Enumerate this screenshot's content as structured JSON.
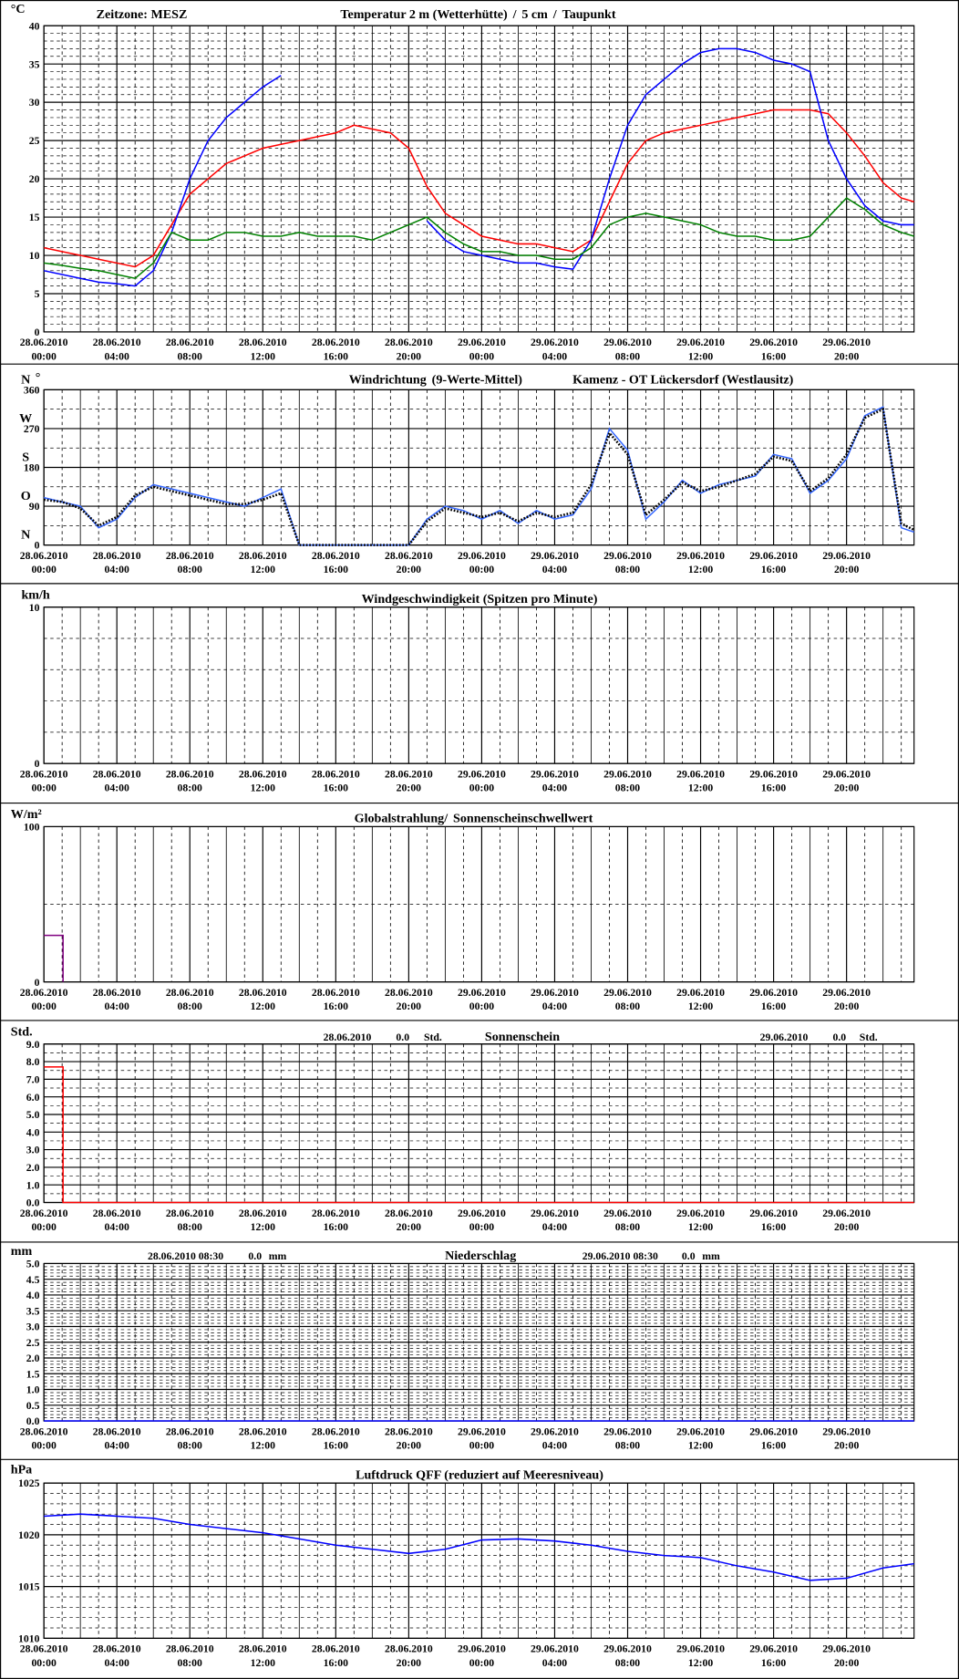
{
  "chart_data": [
    {
      "type": "line",
      "unit": "°C",
      "timezone": "Zeitzone: MESZ",
      "legend_separator": "/",
      "x": [
        0,
        1,
        2,
        3,
        4,
        5,
        6,
        7,
        8,
        9,
        10,
        11,
        12,
        13,
        14,
        15,
        16,
        17,
        18,
        19,
        20,
        21,
        22,
        23,
        24,
        25,
        26,
        27,
        28,
        29,
        30,
        31,
        32,
        33,
        34,
        35,
        36,
        37,
        38,
        39,
        40,
        41,
        42,
        43,
        44,
        45,
        46,
        47,
        47.7
      ],
      "series": [
        {
          "name": "Temperatur 2 m (Wetterhütte)",
          "color": "#ff0000",
          "values": [
            11,
            10.5,
            10,
            9.5,
            9,
            8.5,
            10,
            14,
            18,
            20,
            22,
            23,
            24,
            24.5,
            25,
            25.5,
            26,
            27,
            26.5,
            26,
            24,
            19,
            15.5,
            14,
            12.5,
            12,
            11.5,
            11.5,
            11,
            10.5,
            12,
            17,
            22,
            25,
            26,
            26.5,
            27,
            27.5,
            28,
            28.5,
            29,
            29,
            29,
            28.5,
            26,
            23,
            19.5,
            17.5,
            17
          ]
        },
        {
          "name": "5 cm",
          "color": "#0000ff",
          "values": [
            8,
            7.5,
            7,
            6.5,
            6.3,
            6,
            8,
            13,
            20,
            25,
            28,
            30,
            32,
            33.5,
            null,
            null,
            null,
            null,
            null,
            null,
            null,
            14.5,
            12,
            10.5,
            10,
            9.5,
            9,
            9,
            8.5,
            8.2,
            12,
            20,
            27,
            31,
            33,
            35,
            36.5,
            37,
            37,
            36.5,
            35.5,
            35,
            34,
            25,
            20,
            16.5,
            14.5,
            14,
            14
          ]
        },
        {
          "name": "Taupunkt",
          "color": "#008000",
          "values": [
            9,
            8.7,
            8.3,
            8,
            7.5,
            7,
            9,
            13,
            12,
            12,
            13,
            13,
            12.5,
            12.5,
            13,
            12.5,
            12.5,
            12.5,
            12,
            13,
            14,
            15,
            13,
            11.5,
            10.5,
            10.5,
            10,
            10,
            9.5,
            9.5,
            11,
            14,
            15,
            15.5,
            15,
            14.5,
            14,
            13,
            12.5,
            12.5,
            12,
            12,
            12.5,
            15,
            17.5,
            16,
            14,
            13,
            12.5
          ]
        }
      ],
      "xlim": [
        0,
        47.7
      ],
      "ylim": [
        0,
        40
      ],
      "yticks": [
        0,
        5,
        10,
        15,
        20,
        25,
        30,
        35,
        40
      ],
      "xticks": [
        {
          "value": 0,
          "label": "28.06.2010 00:00"
        },
        {
          "value": 4,
          "label": "28.06.2010 04:00"
        },
        {
          "value": 8,
          "label": "28.06.2010 08:00"
        },
        {
          "value": 12,
          "label": "28.06.2010 12:00"
        },
        {
          "value": 16,
          "label": "28.06.2010 16:00"
        },
        {
          "value": 20,
          "label": "28.06.2010 20:00"
        },
        {
          "value": 24,
          "label": "29.06.2010 00:00"
        },
        {
          "value": 28,
          "label": "29.06.2010 04:00"
        },
        {
          "value": 32,
          "label": "29.06.2010 08:00"
        },
        {
          "value": 36,
          "label": "29.06.2010 12:00"
        },
        {
          "value": 40,
          "label": "29.06.2010 16:00"
        },
        {
          "value": 44,
          "label": "29.06.2010 20:00"
        }
      ]
    },
    {
      "type": "line",
      "unit": "°",
      "station": "Kamenz - OT Lückersdorf (Westlausitz)",
      "compass_labels": [
        "N",
        "O",
        "S",
        "W",
        "N"
      ],
      "x": [
        0,
        1,
        2,
        3,
        4,
        5,
        6,
        7,
        8,
        9,
        10,
        11,
        12,
        13,
        14,
        15,
        16,
        17,
        18,
        19,
        20,
        21,
        22,
        23,
        24,
        25,
        26,
        27,
        28,
        29,
        30,
        31,
        32,
        33,
        34,
        35,
        36,
        37,
        38,
        39,
        40,
        41,
        42,
        43,
        44,
        45,
        46,
        47,
        47.7
      ],
      "series": [
        {
          "name": "Windrichtung",
          "color": "#3366ff",
          "values": [
            110,
            100,
            90,
            40,
            60,
            110,
            140,
            130,
            120,
            110,
            100,
            90,
            110,
            130,
            0,
            0,
            0,
            0,
            0,
            0,
            0,
            60,
            90,
            80,
            60,
            80,
            50,
            80,
            60,
            70,
            130,
            270,
            220,
            60,
            100,
            150,
            120,
            140,
            150,
            160,
            210,
            200,
            120,
            150,
            200,
            300,
            320,
            40,
            30
          ]
        },
        {
          "name": "(9-Werte-Mittel)",
          "color": "#000000",
          "values": [
            105,
            100,
            85,
            45,
            65,
            115,
            135,
            125,
            115,
            105,
            95,
            95,
            105,
            120,
            0,
            0,
            0,
            0,
            0,
            0,
            0,
            55,
            85,
            75,
            65,
            75,
            55,
            75,
            65,
            75,
            140,
            260,
            210,
            70,
            105,
            145,
            125,
            135,
            150,
            165,
            205,
            195,
            125,
            155,
            210,
            295,
            315,
            50,
            35
          ]
        }
      ],
      "xlim": [
        0,
        47.7
      ],
      "ylim": [
        0,
        360
      ],
      "yticks": [
        0,
        90,
        180,
        270,
        360
      ],
      "xticks": [
        {
          "value": 0,
          "label": "28.06.2010 00:00"
        },
        {
          "value": 4,
          "label": "28.06.2010 04:00"
        },
        {
          "value": 8,
          "label": "28.06.2010 08:00"
        },
        {
          "value": 12,
          "label": "28.06.2010 12:00"
        },
        {
          "value": 16,
          "label": "28.06.2010 16:00"
        },
        {
          "value": 20,
          "label": "28.06.2010 20:00"
        },
        {
          "value": 24,
          "label": "29.06.2010 00:00"
        },
        {
          "value": 28,
          "label": "29.06.2010 04:00"
        },
        {
          "value": 32,
          "label": "29.06.2010 08:00"
        },
        {
          "value": 36,
          "label": "29.06.2010 12:00"
        },
        {
          "value": 40,
          "label": "29.06.2010 16:00"
        },
        {
          "value": 44,
          "label": "29.06.2010 20:00"
        }
      ]
    },
    {
      "type": "line",
      "unit": "km/h",
      "title": "Windgeschwindigkeit (Spitzen pro Minute)",
      "xlim": [
        0,
        47.7
      ],
      "ylim": [
        0,
        10
      ],
      "yticks": [
        0,
        10
      ],
      "xticks": [
        {
          "value": 0,
          "label": "28.06.2010 00:00"
        },
        {
          "value": 4,
          "label": "28.06.2010 04:00"
        },
        {
          "value": 8,
          "label": "28.06.2010 08:00"
        },
        {
          "value": 12,
          "label": "28.06.2010 12:00"
        },
        {
          "value": 16,
          "label": "28.06.2010 16:00"
        },
        {
          "value": 20,
          "label": "28.06.2010 20:00"
        },
        {
          "value": 24,
          "label": "29.06.2010 00:00"
        },
        {
          "value": 28,
          "label": "29.06.2010 04:00"
        },
        {
          "value": 32,
          "label": "29.06.2010 08:00"
        },
        {
          "value": 36,
          "label": "29.06.2010 12:00"
        },
        {
          "value": 40,
          "label": "29.06.2010 16:00"
        },
        {
          "value": 44,
          "label": "29.06.2010 20:00"
        }
      ]
    },
    {
      "type": "line",
      "unit": "W/m²",
      "title": "Globalstrahlung/",
      "series": [
        {
          "name": "Sonnenscheinschwellwert",
          "color": "#800080",
          "x": [
            0,
            1.05,
            1.05
          ],
          "values": [
            30,
            30,
            0
          ]
        }
      ],
      "xlim": [
        0,
        47.7
      ],
      "ylim": [
        0,
        100
      ],
      "yticks": [
        0,
        100
      ],
      "xticks": [
        {
          "value": 0,
          "label": "28.06.2010 00:00"
        },
        {
          "value": 4,
          "label": "28.06.2010 04:00"
        },
        {
          "value": 8,
          "label": "28.06.2010 08:00"
        },
        {
          "value": 12,
          "label": "28.06.2010 12:00"
        },
        {
          "value": 16,
          "label": "28.06.2010 16:00"
        },
        {
          "value": 20,
          "label": "28.06.2010 20:00"
        },
        {
          "value": 24,
          "label": "29.06.2010 00:00"
        },
        {
          "value": 28,
          "label": "29.06.2010 04:00"
        },
        {
          "value": 32,
          "label": "29.06.2010 08:00"
        },
        {
          "value": 36,
          "label": "29.06.2010 12:00"
        },
        {
          "value": 40,
          "label": "29.06.2010 16:00"
        },
        {
          "value": 44,
          "label": "29.06.2010 20:00"
        }
      ]
    },
    {
      "type": "line",
      "unit": "Std.",
      "title": "Sonnenschein",
      "total_unit": "Std.",
      "daily_totals": [
        {
          "date": "28.06.2010",
          "total": "0.0"
        },
        {
          "date": "29.06.2010",
          "total": "0.0"
        }
      ],
      "series": [
        {
          "color": "#ff0000",
          "x": [
            0,
            1.05,
            1.05,
            47.7
          ],
          "values": [
            7.7,
            7.7,
            0,
            0
          ]
        }
      ],
      "xlim": [
        0,
        47.7
      ],
      "ylim": [
        0,
        9
      ],
      "yticks": [
        {
          "value": 0,
          "label": "0.0"
        },
        {
          "value": 1,
          "label": "1.0"
        },
        {
          "value": 2,
          "label": "2.0"
        },
        {
          "value": 3,
          "label": "3.0"
        },
        {
          "value": 4,
          "label": "4.0"
        },
        {
          "value": 5,
          "label": "5.0"
        },
        {
          "value": 6,
          "label": "6.0"
        },
        {
          "value": 7,
          "label": "7.0"
        },
        {
          "value": 8,
          "label": "8.0"
        },
        {
          "value": 9,
          "label": "9.0"
        }
      ],
      "xticks": [
        {
          "value": 0,
          "label": "28.06.2010 00:00"
        },
        {
          "value": 4,
          "label": "28.06.2010 04:00"
        },
        {
          "value": 8,
          "label": "28.06.2010 08:00"
        },
        {
          "value": 12,
          "label": "28.06.2010 12:00"
        },
        {
          "value": 16,
          "label": "28.06.2010 16:00"
        },
        {
          "value": 20,
          "label": "28.06.2010 20:00"
        },
        {
          "value": 24,
          "label": "29.06.2010 00:00"
        },
        {
          "value": 28,
          "label": "29.06.2010 04:00"
        },
        {
          "value": 32,
          "label": "29.06.2010 08:00"
        },
        {
          "value": 36,
          "label": "29.06.2010 12:00"
        },
        {
          "value": 40,
          "label": "29.06.2010 16:00"
        },
        {
          "value": 44,
          "label": "29.06.2010 20:00"
        }
      ]
    },
    {
      "type": "line",
      "unit": "mm",
      "title": "Niederschlag",
      "total_unit": "mm",
      "daily_totals": [
        {
          "date": "28.06.2010 08:30",
          "total": "0.0"
        },
        {
          "date": "29.06.2010 08:30",
          "total": "0.0"
        }
      ],
      "series": [
        {
          "color": "#0000ff",
          "x": [
            0,
            47.7
          ],
          "values": [
            0,
            0
          ]
        }
      ],
      "xlim": [
        0,
        47.7
      ],
      "ylim": [
        0,
        5
      ],
      "yticks": [
        {
          "value": 0,
          "label": "0.0"
        },
        {
          "value": 0.5,
          "label": "0.5"
        },
        {
          "value": 1,
          "label": "1.0"
        },
        {
          "value": 1.5,
          "label": "1.5"
        },
        {
          "value": 2,
          "label": "2.0"
        },
        {
          "value": 2.5,
          "label": "2.5"
        },
        {
          "value": 3,
          "label": "3.0"
        },
        {
          "value": 3.5,
          "label": "3.5"
        },
        {
          "value": 4,
          "label": "4.0"
        },
        {
          "value": 4.5,
          "label": "4.5"
        },
        {
          "value": 5,
          "label": "5.0"
        }
      ],
      "xticks": [
        {
          "value": 0,
          "label": "28.06.2010 00:00"
        },
        {
          "value": 4,
          "label": "28.06.2010 04:00"
        },
        {
          "value": 8,
          "label": "28.06.2010 08:00"
        },
        {
          "value": 12,
          "label": "28.06.2010 12:00"
        },
        {
          "value": 16,
          "label": "28.06.2010 16:00"
        },
        {
          "value": 20,
          "label": "28.06.2010 20:00"
        },
        {
          "value": 24,
          "label": "29.06.2010 00:00"
        },
        {
          "value": 28,
          "label": "29.06.2010 04:00"
        },
        {
          "value": 32,
          "label": "29.06.2010 08:00"
        },
        {
          "value": 36,
          "label": "29.06.2010 12:00"
        },
        {
          "value": 40,
          "label": "29.06.2010 16:00"
        },
        {
          "value": 44,
          "label": "29.06.2010 20:00"
        }
      ]
    },
    {
      "type": "line",
      "unit": "hPa",
      "title": "Luftdruck QFF (reduziert auf Meeresniveau)",
      "series": [
        {
          "color": "#0000ff",
          "x": [
            0,
            2,
            4,
            6,
            8,
            10,
            12,
            14,
            16,
            18,
            20,
            22,
            24,
            26,
            28,
            30,
            32,
            34,
            36,
            38,
            40,
            42,
            44,
            46,
            47.7
          ],
          "values": [
            1021.8,
            1022,
            1021.8,
            1021.6,
            1021,
            1020.6,
            1020.2,
            1019.6,
            1019,
            1018.6,
            1018.2,
            1018.6,
            1019.5,
            1019.6,
            1019.4,
            1019,
            1018.4,
            1018,
            1017.8,
            1017,
            1016.4,
            1015.6,
            1015.8,
            1016.8,
            1017.2
          ]
        }
      ],
      "xlim": [
        0,
        47.7
      ],
      "ylim": [
        1010,
        1025
      ],
      "yticks": [
        1010,
        1015,
        1020,
        1025
      ],
      "xticks": [
        {
          "value": 0,
          "label": "28.06.2010 00:00"
        },
        {
          "value": 4,
          "label": "28.06.2010 04:00"
        },
        {
          "value": 8,
          "label": "28.06.2010 08:00"
        },
        {
          "value": 12,
          "label": "28.06.2010 12:00"
        },
        {
          "value": 16,
          "label": "28.06.2010 16:00"
        },
        {
          "value": 20,
          "label": "28.06.2010 20:00"
        },
        {
          "value": 24,
          "label": "29.06.2010 00:00"
        },
        {
          "value": 28,
          "label": "29.06.2010 04:00"
        },
        {
          "value": 32,
          "label": "29.06.2010 08:00"
        },
        {
          "value": 36,
          "label": "29.06.2010 12:00"
        },
        {
          "value": 40,
          "label": "29.06.2010 16:00"
        },
        {
          "value": 44,
          "label": "29.06.2010 20:00"
        }
      ]
    }
  ]
}
